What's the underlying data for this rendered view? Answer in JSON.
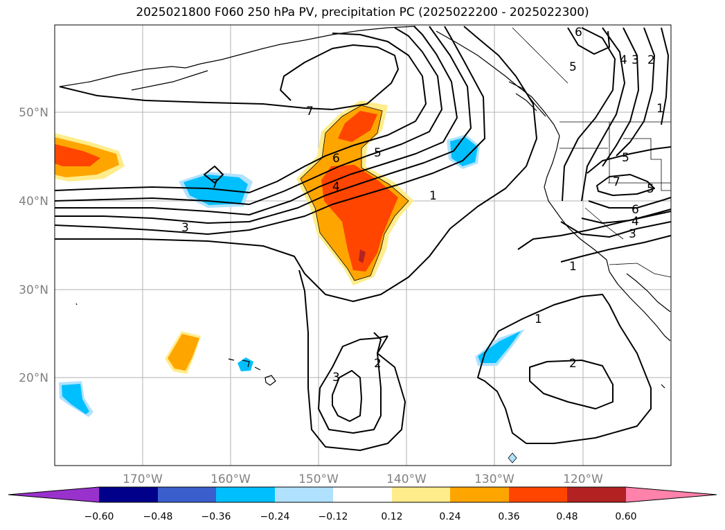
{
  "title": "2025021800 F060 250 hPa PV, precipitation PC (2025022200 - 2025022300)",
  "map": {
    "lat_labels": [
      "50°N",
      "40°N",
      "30°N",
      "20°N"
    ],
    "lon_labels": [
      "170°W",
      "160°W",
      "150°W",
      "140°W",
      "130°W",
      "120°W"
    ],
    "contour_labels": [
      "7",
      "7",
      "6",
      "5",
      "4",
      "3",
      "1",
      "1",
      "1",
      "2",
      "2",
      "3",
      "6",
      "5",
      "4",
      "3",
      "2",
      "1",
      "7",
      "5",
      "6",
      "4",
      "3",
      "5"
    ]
  },
  "colorbar": {
    "ticks": [
      "−0.60",
      "−0.48",
      "−0.36",
      "−0.24",
      "−0.12",
      "0.12",
      "0.24",
      "0.36",
      "0.48",
      "0.60"
    ],
    "colors": [
      "#9932cc",
      "#00008b",
      "#3a5fcd",
      "#00bfff",
      "#b0e2ff",
      "#ffffff",
      "#ffec8b",
      "#ffa500",
      "#ff4500",
      "#b22222",
      "#ff82ab"
    ]
  },
  "colors": {
    "positive_strong": "#b22222",
    "positive_mid": "#ff4500",
    "positive_low": "#ffa500",
    "positive_weak": "#ffec8b",
    "negative_mid": "#00bfff",
    "negative_weak": "#b0e2ff"
  }
}
